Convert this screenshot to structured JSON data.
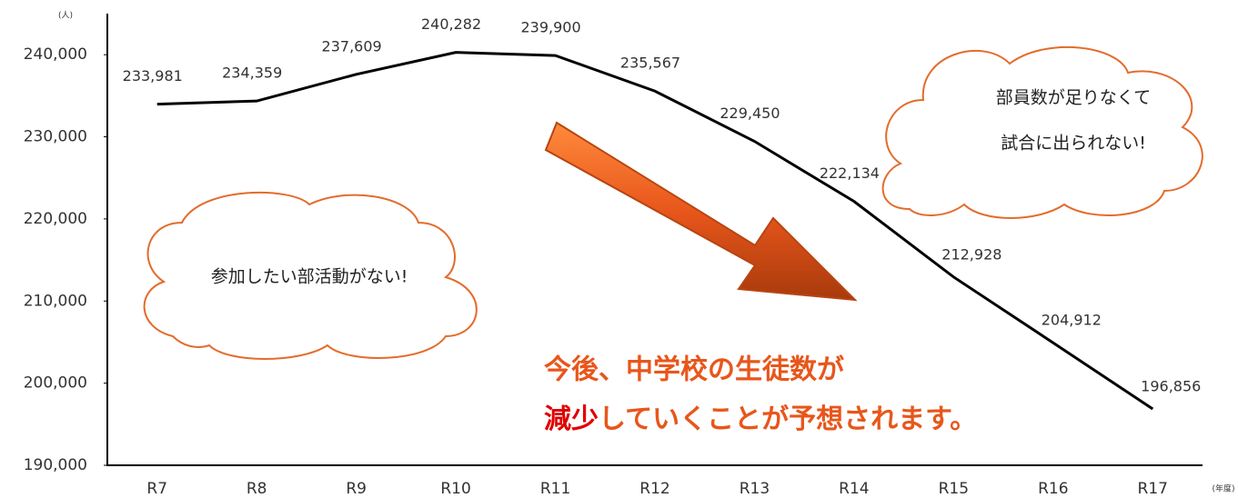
{
  "chart_data": {
    "type": "line",
    "y_unit": "(人)",
    "x_unit": "(年度)",
    "categories": [
      "R7",
      "R8",
      "R9",
      "R10",
      "R11",
      "R12",
      "R13",
      "R14",
      "R15",
      "R16",
      "R17"
    ],
    "series": [
      {
        "color": "#000000",
        "values": [
          233981,
          234359,
          237609,
          240282,
          239900,
          235567,
          229450,
          222134,
          212928,
          204912,
          196856
        ],
        "value_labels": [
          "233,981",
          "234,359",
          "237,609",
          "240,282",
          "239,900",
          "235,567",
          "229,450",
          "222,134",
          "212,928",
          "204,912",
          "196,856"
        ]
      }
    ],
    "ylim": [
      190000,
      245000
    ],
    "yticks": [
      {
        "value": 190000,
        "label": "190,000"
      },
      {
        "value": 200000,
        "label": "200,000"
      },
      {
        "value": 210000,
        "label": "210,000"
      },
      {
        "value": 220000,
        "label": "220,000"
      },
      {
        "value": 230000,
        "label": "230,000"
      },
      {
        "value": 240000,
        "label": "240,000"
      }
    ],
    "grid": false,
    "annotations": {
      "bubble_right": [
        "部員数が足りなくて",
        "試合に出られない!"
      ],
      "bubble_left": "参加したい部活動がない!",
      "message_line1": "今後、中学校の生徒数が",
      "message_line2_red": "減少",
      "message_line2_rest": "していくことが予想されます。"
    }
  }
}
